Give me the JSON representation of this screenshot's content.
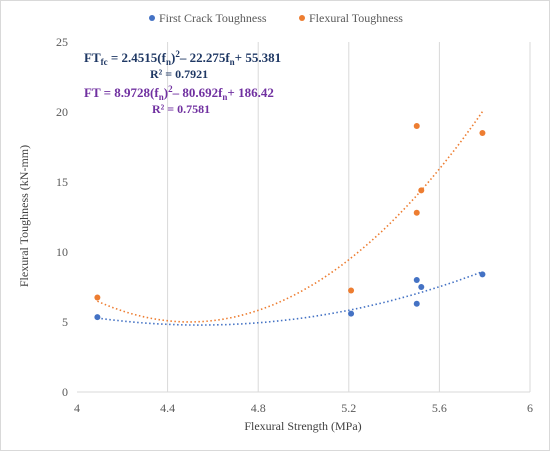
{
  "chart_data": {
    "type": "scatter",
    "xlabel": "Flexural  Strength  (MPa)",
    "ylabel": "Flexural  Toughness  (kN-mm)",
    "xlim": [
      4,
      6
    ],
    "ylim": [
      0,
      25
    ],
    "x_ticks": [
      "4",
      "4.4",
      "4.8",
      "5.2",
      "5.6",
      "6"
    ],
    "y_ticks": [
      "0",
      "5",
      "10",
      "15",
      "20",
      "25"
    ],
    "grid": "vertical",
    "legend_position": "top",
    "series": [
      {
        "name": "First Crack Toughness",
        "color": "#4472c4",
        "points": [
          [
            4.09,
            5.35
          ],
          [
            5.21,
            5.6
          ],
          [
            5.5,
            6.3
          ],
          [
            5.5,
            8.0
          ],
          [
            5.52,
            7.5
          ],
          [
            5.79,
            8.4
          ]
        ],
        "trendline": {
          "type": "poly2",
          "a": 2.4515,
          "b": -22.275,
          "c": 55.381,
          "x_range": [
            4.09,
            5.79
          ]
        }
      },
      {
        "name": "Flexural Toughness",
        "color": "#ed7d31",
        "points": [
          [
            4.09,
            6.75
          ],
          [
            5.21,
            7.25
          ],
          [
            5.5,
            12.8
          ],
          [
            5.52,
            14.4
          ],
          [
            5.5,
            19.0
          ],
          [
            5.79,
            18.5
          ]
        ],
        "trendline": {
          "type": "poly2",
          "a": 8.9728,
          "b": -80.692,
          "c": 186.42,
          "x_range": [
            4.09,
            5.79
          ]
        }
      }
    ],
    "annotations": {
      "first_crack_equation": "FT",
      "first_crack_equation_sub": "fc",
      "first_crack_equation_rest": " = 2.4515(f",
      "first_crack_eq_parts": [
        "n",
        ")",
        "2",
        "– 22.275f",
        "n",
        "+ 55.381"
      ],
      "first_crack_r2": "R² = 0.7921",
      "flexural_equation_parts": [
        "FT = 8.9728(f",
        "n",
        ")",
        "2",
        "– 80.692f",
        "n",
        "+ 186.42"
      ],
      "flexural_r2": "R² = 0.7581",
      "first_crack_color": "#1f3864",
      "flexural_color": "#7030a0"
    }
  }
}
